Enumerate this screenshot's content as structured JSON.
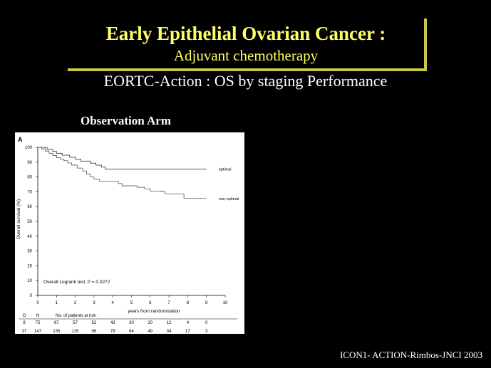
{
  "slide": {
    "title": "Early Epithelial Ovarian Cancer :",
    "subtitle": "Adjuvant chemotherapy",
    "heading": "EORTC-Action : OS by staging Performance",
    "arm_label": "Observation Arm",
    "citation": "ICON1- ACTION-Rimbos-JNCI 2003"
  },
  "colors": {
    "background": "#000000",
    "title": "#ffff66",
    "accent_line": "#c9c74a",
    "text": "#ffffff"
  },
  "chart_data": {
    "type": "line",
    "panel_label": "A",
    "xlabel": "years from randomization",
    "ylabel": "Overall survival (%)",
    "xlim": [
      0,
      10
    ],
    "ylim": [
      0,
      100
    ],
    "x_ticks": [
      "0",
      "1",
      "2",
      "3",
      "4",
      "5",
      "6",
      "7",
      "8",
      "9",
      "10"
    ],
    "y_ticks": [
      "0",
      "10",
      "20",
      "30",
      "40",
      "50",
      "60",
      "70",
      "80",
      "90",
      "100"
    ],
    "grid": false,
    "series": [
      {
        "name": "optimal",
        "points": [
          [
            0,
            100
          ],
          [
            0.5,
            98.7
          ],
          [
            0.8,
            97.3
          ],
          [
            1.0,
            96
          ],
          [
            1.3,
            94.7
          ],
          [
            1.7,
            93.3
          ],
          [
            2.0,
            92
          ],
          [
            2.3,
            90.7
          ],
          [
            2.8,
            89.3
          ],
          [
            3.1,
            88
          ],
          [
            3.4,
            86.7
          ],
          [
            3.6,
            85.3
          ],
          [
            6.0,
            85.3
          ],
          [
            9.0,
            85.3
          ]
        ]
      },
      {
        "name": "non-optimal",
        "points": [
          [
            0,
            100
          ],
          [
            0.2,
            99
          ],
          [
            0.4,
            97.5
          ],
          [
            0.6,
            96
          ],
          [
            0.8,
            94.5
          ],
          [
            1.0,
            93
          ],
          [
            1.2,
            92
          ],
          [
            1.4,
            91
          ],
          [
            1.6,
            89.5
          ],
          [
            1.8,
            88
          ],
          [
            2.1,
            86
          ],
          [
            2.4,
            84
          ],
          [
            2.6,
            82
          ],
          [
            2.8,
            80
          ],
          [
            3.0,
            78.5
          ],
          [
            3.3,
            77
          ],
          [
            4.2,
            77
          ],
          [
            4.3,
            75.5
          ],
          [
            4.5,
            74
          ],
          [
            5.3,
            73
          ],
          [
            5.7,
            72
          ],
          [
            6.0,
            70.5
          ],
          [
            6.6,
            70
          ],
          [
            6.8,
            68.5
          ],
          [
            7.5,
            68.5
          ],
          [
            7.8,
            65.5
          ],
          [
            9.0,
            65.5
          ]
        ]
      }
    ],
    "annotation": "Overall Logrank test: P = 0.0272",
    "risk_table": {
      "header": [
        "O",
        "N",
        "No. of patients at risk :"
      ],
      "rows": [
        {
          "O": "8",
          "N": "75",
          "values": [
            "67",
            "57",
            "52",
            "43",
            "30",
            "20",
            "12",
            "4",
            "0"
          ]
        },
        {
          "O": "37",
          "N": "147",
          "values": [
            "135",
            "115",
            "96",
            "79",
            "64",
            "49",
            "34",
            "17",
            "3"
          ]
        }
      ]
    }
  }
}
